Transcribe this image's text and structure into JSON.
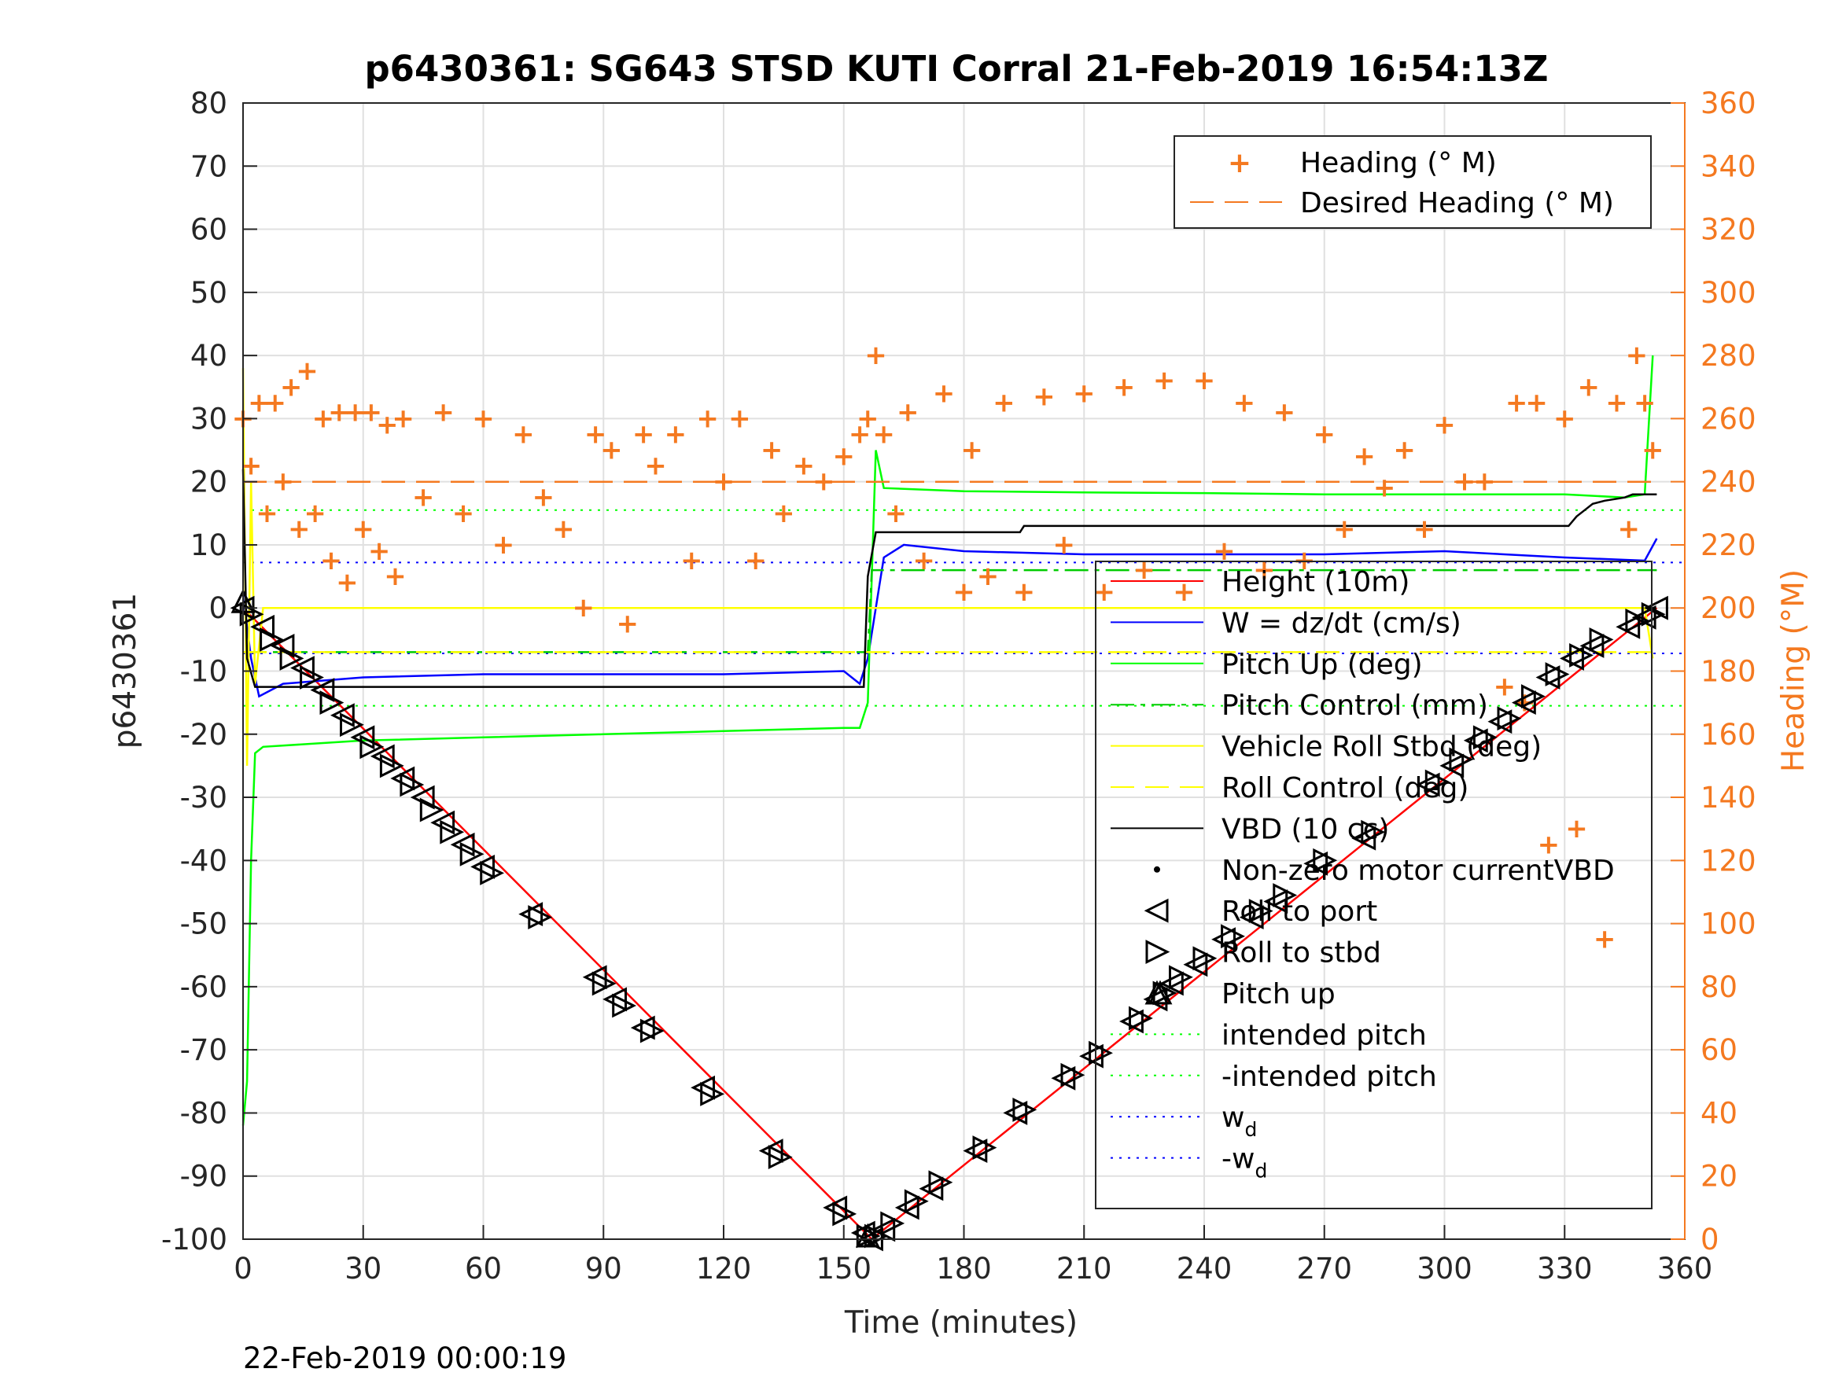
{
  "chart_data": {
    "type": "line",
    "title": "p6430361: SG643 STSD KUTI Corral 21-Feb-2019 16:54:13Z",
    "xlabel": "Time (minutes)",
    "ylabel": "p6430361",
    "y2label": "Heading (°M)",
    "xlim": [
      0,
      360
    ],
    "ylim": [
      -100,
      80
    ],
    "y2lim": [
      0,
      360
    ],
    "xticks": [
      0,
      30,
      60,
      90,
      120,
      150,
      180,
      210,
      240,
      270,
      300,
      330,
      360
    ],
    "yticks": [
      80,
      70,
      60,
      50,
      40,
      30,
      20,
      10,
      0,
      -10,
      -20,
      -30,
      -40,
      -50,
      -60,
      -70,
      -80,
      -90,
      -100
    ],
    "y2ticks": [
      360,
      340,
      320,
      300,
      280,
      260,
      240,
      220,
      200,
      180,
      160,
      140,
      120,
      100,
      80,
      60,
      40,
      20,
      0
    ],
    "grid": true,
    "footer": "22-Feb-2019 00:00:19",
    "legend_right": {
      "placement": "top-right",
      "entries": [
        "Heading (° M)",
        "Desired Heading (° M)"
      ]
    },
    "legend_left": {
      "placement": "lower-right",
      "entries": [
        {
          "label": "Height (10m)"
        },
        {
          "label": "W = dz/dt (cm/s)"
        },
        {
          "label": "Pitch Up (deg)"
        },
        {
          "label": "Pitch Control (mm)"
        },
        {
          "label": "Vehicle Roll Stbd (deg)"
        },
        {
          "label": "Roll Control (deg)"
        },
        {
          "label": "VBD (10 cc)"
        },
        {
          "label": "Non-zero motor currentVBD"
        },
        {
          "label": "Roll to port"
        },
        {
          "label": "Roll to stbd"
        },
        {
          "label": "Pitch up"
        },
        {
          "label": "intended pitch"
        },
        {
          "label": "-intended pitch"
        },
        {
          "label": "w",
          "sub": "d"
        },
        {
          "label": "-w",
          "sub": "d"
        }
      ]
    },
    "reference_lines": {
      "intended_pitch": 15.5,
      "neg_intended_pitch": -15.5,
      "w_d": 7.2,
      "neg_w_d": -7.2,
      "desired_heading_deg": 240
    },
    "series": [
      {
        "name": "Height (10m)",
        "axis": "left",
        "x": [
          0,
          157,
          353
        ],
        "y": [
          0,
          -100,
          0
        ]
      },
      {
        "name": "W = dz/dt (cm/s)",
        "axis": "left",
        "x": [
          0,
          2,
          4,
          10,
          30,
          60,
          90,
          120,
          150,
          154,
          156,
          160,
          165,
          180,
          210,
          240,
          270,
          300,
          330,
          350,
          353
        ],
        "y": [
          2,
          -8,
          -14,
          -12,
          -11,
          -10.5,
          -10.5,
          -10.5,
          -10,
          -12,
          -8,
          8,
          10,
          9,
          8.5,
          8.5,
          8.5,
          9,
          8,
          7.5,
          11
        ]
      },
      {
        "name": "Pitch Up (deg)",
        "axis": "left",
        "x": [
          0,
          1,
          2,
          3,
          5,
          30,
          60,
          90,
          120,
          150,
          154,
          156,
          158,
          160,
          180,
          210,
          240,
          270,
          300,
          330,
          345,
          350,
          352
        ],
        "y": [
          -82,
          -75,
          -40,
          -23,
          -22,
          -21,
          -20.5,
          -20,
          -19.5,
          -19,
          -19,
          -15,
          25,
          19,
          18.5,
          18.3,
          18.2,
          18,
          18,
          18,
          17.5,
          18,
          40
        ]
      },
      {
        "name": "Pitch Control (mm)",
        "axis": "left",
        "x": [
          0,
          156,
          157,
          353
        ],
        "y": [
          -7,
          -7,
          6,
          6
        ]
      },
      {
        "name": "Vehicle Roll Stbd (deg)",
        "axis": "left",
        "x": [
          0,
          1,
          2,
          3,
          5,
          10,
          30,
          60,
          90,
          120,
          150,
          155,
          160,
          180,
          210,
          240,
          270,
          300,
          330,
          350,
          352
        ],
        "y": [
          38,
          -25,
          20,
          -12,
          0,
          0,
          0,
          0,
          0,
          0,
          0,
          0,
          0,
          0,
          0,
          0,
          0,
          0,
          0,
          0,
          -8
        ]
      },
      {
        "name": "Roll Control (deg)",
        "axis": "left",
        "x": [
          0,
          353
        ],
        "y": [
          -7,
          -7
        ]
      },
      {
        "name": "VBD (10 cc)",
        "axis": "left",
        "x": [
          0,
          1,
          3,
          155,
          156,
          158,
          194,
          195,
          331,
          333,
          335,
          337,
          340,
          345,
          347,
          353
        ],
        "y": [
          22,
          -8,
          -12.5,
          -12.5,
          5,
          12,
          12,
          13,
          13,
          14.5,
          15.5,
          16.5,
          17,
          17.5,
          18,
          18
        ]
      },
      {
        "name": "Heading (° M)",
        "axis": "right",
        "x": [
          0,
          2,
          4,
          6,
          8,
          10,
          12,
          14,
          16,
          18,
          20,
          22,
          24,
          26,
          28,
          30,
          32,
          34,
          36,
          38,
          40,
          45,
          50,
          55,
          60,
          65,
          70,
          75,
          80,
          85,
          88,
          92,
          96,
          100,
          103,
          108,
          112,
          116,
          120,
          124,
          128,
          132,
          135,
          140,
          145,
          150,
          154,
          156,
          158,
          160,
          163,
          166,
          170,
          175,
          180,
          182,
          186,
          190,
          195,
          200,
          205,
          210,
          215,
          220,
          225,
          230,
          235,
          240,
          245,
          250,
          255,
          260,
          265,
          270,
          275,
          280,
          285,
          290,
          295,
          300,
          305,
          310,
          315,
          318,
          320,
          323,
          326,
          330,
          333,
          336,
          340,
          343,
          346,
          348,
          350,
          352
        ],
        "y": [
          260,
          245,
          265,
          230,
          265,
          240,
          270,
          225,
          275,
          230,
          260,
          215,
          262,
          208,
          262,
          225,
          262,
          218,
          258,
          210,
          260,
          235,
          262,
          230,
          260,
          220,
          255,
          235,
          225,
          200,
          255,
          250,
          195,
          255,
          245,
          255,
          215,
          260,
          240,
          260,
          215,
          250,
          230,
          245,
          240,
          248,
          255,
          260,
          280,
          255,
          230,
          262,
          215,
          268,
          205,
          250,
          210,
          265,
          205,
          267,
          220,
          268,
          205,
          270,
          212,
          272,
          205,
          272,
          218,
          265,
          212,
          262,
          215,
          255,
          225,
          248,
          238,
          250,
          225,
          258,
          240,
          240,
          175,
          265,
          170,
          265,
          125,
          260,
          130,
          270,
          95,
          265,
          225,
          280,
          265,
          250
        ]
      },
      {
        "name": "Desired Heading (° M)",
        "axis": "right",
        "x": [
          0,
          353
        ],
        "y": [
          240,
          240
        ]
      }
    ],
    "markers": {
      "roll_to_port": [
        [
          0,
          0
        ],
        [
          5,
          -3
        ],
        [
          10,
          -6
        ],
        [
          15,
          -9.5
        ],
        [
          20,
          -13
        ],
        [
          25,
          -17
        ],
        [
          30,
          -20.5
        ],
        [
          35,
          -23.5
        ],
        [
          40,
          -27
        ],
        [
          45,
          -30
        ],
        [
          50,
          -34
        ],
        [
          55,
          -37.5
        ],
        [
          60,
          -41
        ],
        [
          72,
          -48.5
        ],
        [
          88,
          -58.5
        ],
        [
          93,
          -62
        ],
        [
          100,
          -66.5
        ],
        [
          115,
          -76
        ],
        [
          132,
          -86
        ],
        [
          148,
          -95
        ],
        [
          155,
          -99
        ],
        [
          157,
          -100
        ],
        [
          160,
          -98.5
        ],
        [
          166,
          -95
        ],
        [
          172,
          -92
        ],
        [
          183,
          -86
        ],
        [
          193,
          -80
        ],
        [
          205,
          -74.5
        ],
        [
          212,
          -71
        ],
        [
          222,
          -65.5
        ],
        [
          228,
          -62
        ],
        [
          232,
          -59.5
        ],
        [
          238,
          -56.5
        ],
        [
          245,
          -52.5
        ],
        [
          252,
          -49
        ],
        [
          258,
          -46.5
        ],
        [
          268,
          -40.5
        ],
        [
          280,
          -36.5
        ],
        [
          296,
          -28
        ],
        [
          302,
          -25
        ],
        [
          308,
          -21
        ],
        [
          314,
          -18
        ],
        [
          320,
          -15
        ],
        [
          326,
          -11
        ],
        [
          332,
          -8
        ],
        [
          337,
          -6
        ],
        [
          346,
          -3
        ],
        [
          350,
          -1.5
        ],
        [
          353,
          0
        ]
      ],
      "roll_to_stbd": [
        [
          2,
          -1
        ],
        [
          7,
          -5
        ],
        [
          12,
          -8
        ],
        [
          17,
          -11
        ],
        [
          22,
          -15
        ],
        [
          27,
          -18.5
        ],
        [
          32,
          -22
        ],
        [
          37,
          -25
        ],
        [
          42,
          -28
        ],
        [
          47,
          -32
        ],
        [
          52,
          -35.5
        ],
        [
          57,
          -39
        ],
        [
          62,
          -42
        ],
        [
          74,
          -49
        ],
        [
          90,
          -59.5
        ],
        [
          95,
          -63
        ],
        [
          102,
          -67
        ],
        [
          117,
          -77
        ],
        [
          134,
          -87
        ],
        [
          150,
          -96
        ],
        [
          156,
          -99.5
        ],
        [
          158,
          -99.5
        ],
        [
          162,
          -97.5
        ],
        [
          168,
          -94
        ],
        [
          174,
          -91
        ],
        [
          185,
          -85.5
        ],
        [
          195,
          -79.5
        ],
        [
          207,
          -74
        ],
        [
          214,
          -70.5
        ],
        [
          224,
          -65
        ],
        [
          230,
          -61
        ],
        [
          234,
          -58.5
        ],
        [
          240,
          -55.5
        ],
        [
          247,
          -52
        ],
        [
          254,
          -48
        ],
        [
          260,
          -45.5
        ],
        [
          270,
          -40
        ],
        [
          282,
          -35.5
        ],
        [
          298,
          -27.5
        ],
        [
          304,
          -24
        ],
        [
          310,
          -20.5
        ],
        [
          316,
          -17.5
        ],
        [
          322,
          -14
        ],
        [
          328,
          -10.5
        ],
        [
          334,
          -7.5
        ],
        [
          339,
          -5
        ],
        [
          348,
          -2
        ],
        [
          352,
          -1
        ]
      ],
      "pitch_up": [
        [
          0,
          1
        ],
        [
          156,
          -99.5
        ],
        [
          229,
          -61
        ]
      ]
    }
  }
}
